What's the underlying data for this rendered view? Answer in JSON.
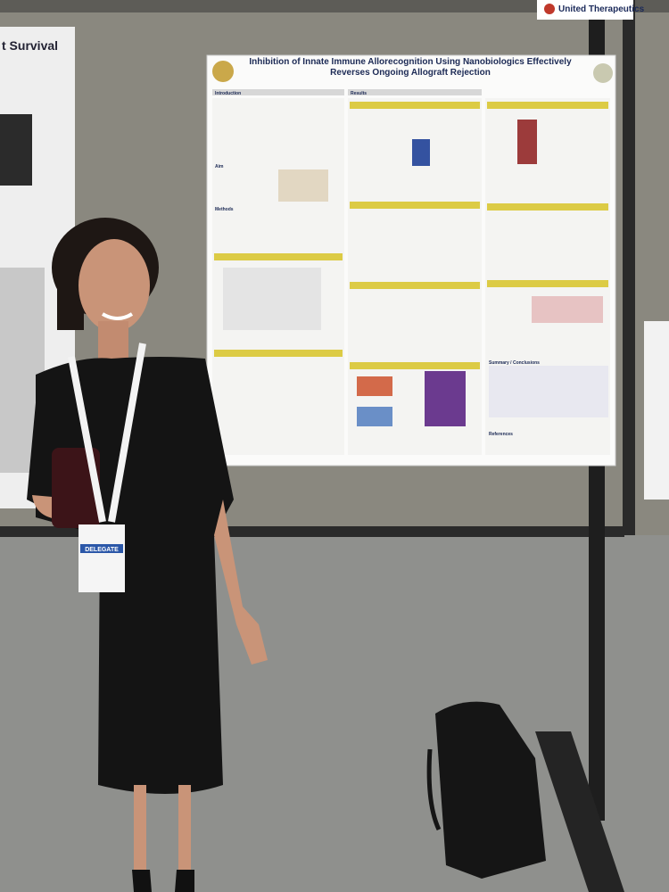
{
  "sponsor": "United Therapeutics",
  "left_poster": {
    "title": "t Survival"
  },
  "poster": {
    "title": "Inhibition of Innate Immune Allorecognition Using Nanobiologics Effectively Reverses Ongoing Allograft Rejection",
    "sections": [
      "Introduction",
      "Aim",
      "Methods",
      "Results",
      "Summary / Conclusions",
      "References"
    ]
  },
  "badge": {
    "role": "DELEGATE"
  }
}
